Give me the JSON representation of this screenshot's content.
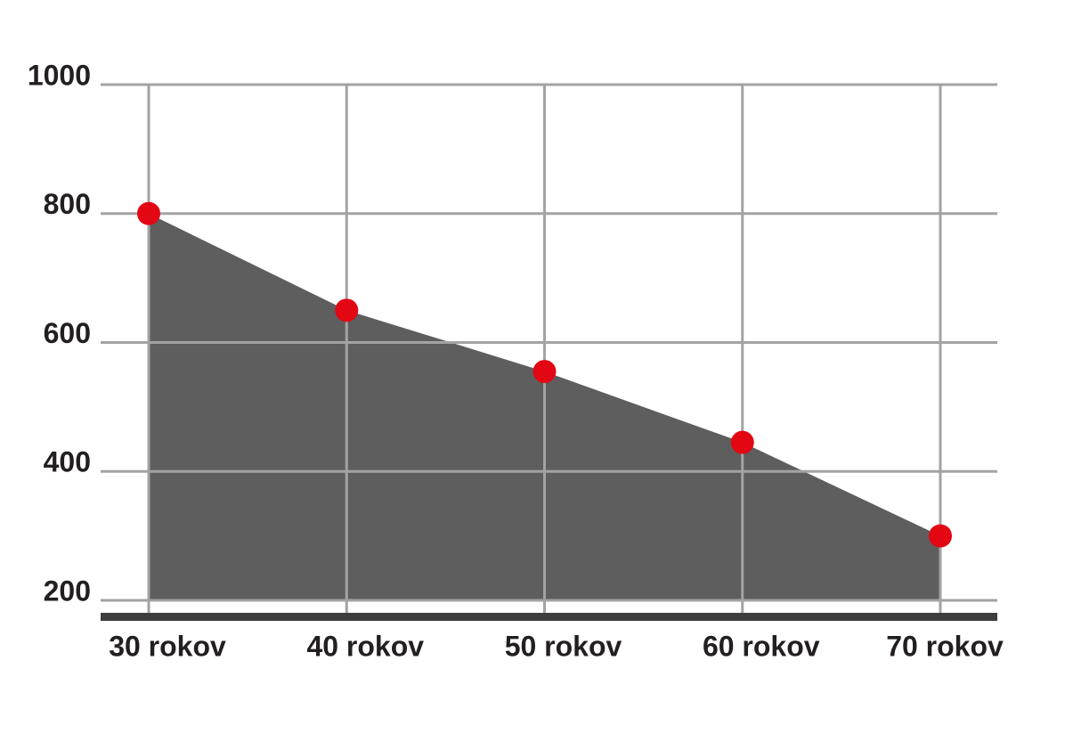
{
  "chart_data": {
    "type": "area",
    "categories": [
      "30 rokov",
      "40 rokov",
      "50 rokov",
      "60 rokov",
      "70 rokov"
    ],
    "values": [
      800,
      650,
      555,
      445,
      300
    ],
    "color": "#5e5e5e",
    "marker_color": "#e30613",
    "ylim": [
      200,
      1000
    ],
    "yticks": [
      200,
      400,
      600,
      800,
      1000
    ],
    "grid": true
  }
}
